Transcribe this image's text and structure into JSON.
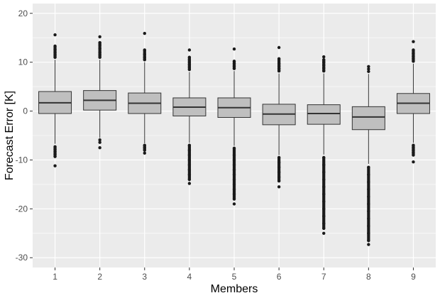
{
  "chart_data": {
    "type": "boxplot",
    "title": "",
    "xlabel": "Members",
    "ylabel": "Forecast Error [K]",
    "categories": [
      "1",
      "2",
      "3",
      "4",
      "5",
      "6",
      "7",
      "8",
      "9"
    ],
    "ylim": [
      -32,
      22
    ],
    "yticks": [
      -30,
      -20,
      -10,
      0,
      10,
      20
    ],
    "grid": true,
    "boxes": [
      {
        "q1": -0.5,
        "median": 1.7,
        "q3": 4.0,
        "whisker_low": -6.7,
        "whisker_high": 10.5,
        "outliers": [
          -7.3,
          -7.8,
          -8.3,
          -8.8,
          -9.3,
          -11.2,
          11.0,
          11.5,
          12.0,
          12.6,
          13.3,
          15.6
        ]
      },
      {
        "q1": 0.2,
        "median": 2.2,
        "q3": 4.2,
        "whisker_low": -5.5,
        "whisker_high": 10.5,
        "outliers": [
          -5.9,
          -6.4,
          -7.5,
          11.0,
          11.5,
          12.0,
          12.8,
          13.5,
          14.0,
          15.2
        ]
      },
      {
        "q1": -0.5,
        "median": 1.6,
        "q3": 3.7,
        "whisker_low": -6.6,
        "whisker_high": 10.0,
        "outliers": [
          -7.0,
          -7.5,
          -8.0,
          -8.6,
          10.5,
          11.0,
          11.6,
          12.5,
          15.9
        ]
      },
      {
        "q1": -1.0,
        "median": 0.8,
        "q3": 2.7,
        "whisker_low": -6.5,
        "whisker_high": 8.0,
        "outliers": [
          -7.0,
          -8.0,
          -9.0,
          -10.0,
          -11.0,
          -12.0,
          -13.0,
          -14.0,
          -14.8,
          8.5,
          9.0,
          9.5,
          10.0,
          10.5,
          11.0,
          12.5
        ]
      },
      {
        "q1": -1.3,
        "median": 0.7,
        "q3": 2.7,
        "whisker_low": -7.1,
        "whisker_high": 8.2,
        "outliers": [
          -7.6,
          -9.0,
          -10.0,
          -11.0,
          -12.0,
          -13.0,
          -14.0,
          -15.0,
          -16.0,
          -17.0,
          -18.0,
          -19.0,
          8.7,
          9.2,
          9.7,
          10.2,
          12.7
        ]
      },
      {
        "q1": -2.8,
        "median": -0.6,
        "q3": 1.4,
        "whisker_low": -9.0,
        "whisker_high": 7.7,
        "outliers": [
          -9.5,
          -10.5,
          -11.5,
          -12.5,
          -13.5,
          -14.3,
          -15.5,
          8.2,
          8.7,
          9.2,
          9.7,
          10.7,
          13.0
        ]
      },
      {
        "q1": -2.7,
        "median": -0.5,
        "q3": 1.3,
        "whisker_low": -8.9,
        "whisker_high": 7.7,
        "outliers": [
          -9.5,
          -11.0,
          -12.5,
          -14.0,
          -15.5,
          -17.0,
          -18.5,
          -20.0,
          -21.5,
          -23.0,
          -24.0,
          -25.0,
          8.2,
          8.8,
          9.4,
          10.0,
          10.5,
          11.1
        ]
      },
      {
        "q1": -3.8,
        "median": -1.2,
        "q3": 0.9,
        "whisker_low": -10.8,
        "whisker_high": 7.6,
        "outliers": [
          -11.5,
          -13.0,
          -14.5,
          -16.0,
          -17.5,
          -19.0,
          -20.5,
          -22.0,
          -23.5,
          -25.0,
          -26.5,
          -27.3,
          8.1,
          8.6,
          9.1
        ]
      },
      {
        "q1": -0.5,
        "median": 1.6,
        "q3": 3.6,
        "whisker_low": -6.5,
        "whisker_high": 9.7,
        "outliers": [
          -7.0,
          -7.5,
          -8.0,
          -8.5,
          -9.0,
          -10.4,
          10.2,
          10.7,
          11.2,
          11.8,
          12.5,
          14.2
        ]
      }
    ],
    "colors": {
      "panel": "#ebebeb",
      "grid": "#ffffff",
      "box_fill": "#bfbfbf",
      "line": "#333333",
      "outlier": "#1a1a1a"
    }
  }
}
